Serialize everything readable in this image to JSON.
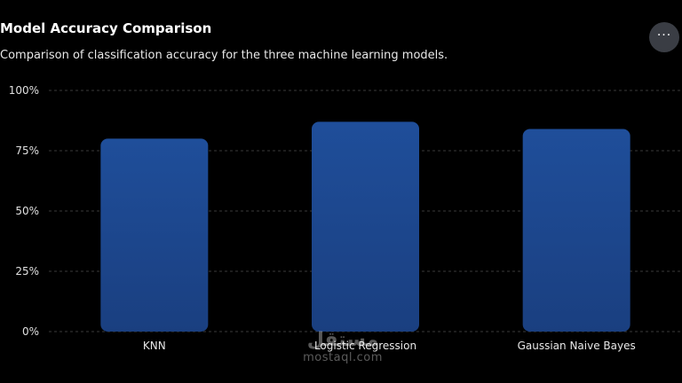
{
  "header": {
    "title": "Model Accuracy Comparison",
    "subtitle": "Comparison of classification accuracy for the three machine learning models.",
    "more_icon": "more-horizontal-icon",
    "more_label": "···"
  },
  "chart_data": {
    "type": "bar",
    "title": "Model Accuracy Comparison",
    "subtitle": "Comparison of classification accuracy for the three machine learning models.",
    "categories": [
      "KNN",
      "Logistic Regression",
      "Gaussian Naive Bayes"
    ],
    "values": [
      80,
      87,
      84
    ],
    "ylim": [
      0,
      100
    ],
    "yticks": [
      0,
      25,
      50,
      75,
      100
    ],
    "ytick_labels": [
      "0%",
      "25%",
      "50%",
      "75%",
      "100%"
    ],
    "grid": true,
    "legend": "none",
    "bar_color": "#1e4b96",
    "bar_color_dark": "#1a3f80"
  },
  "watermark": {
    "arabic": "مستقل",
    "latin": "mostaql.com"
  }
}
